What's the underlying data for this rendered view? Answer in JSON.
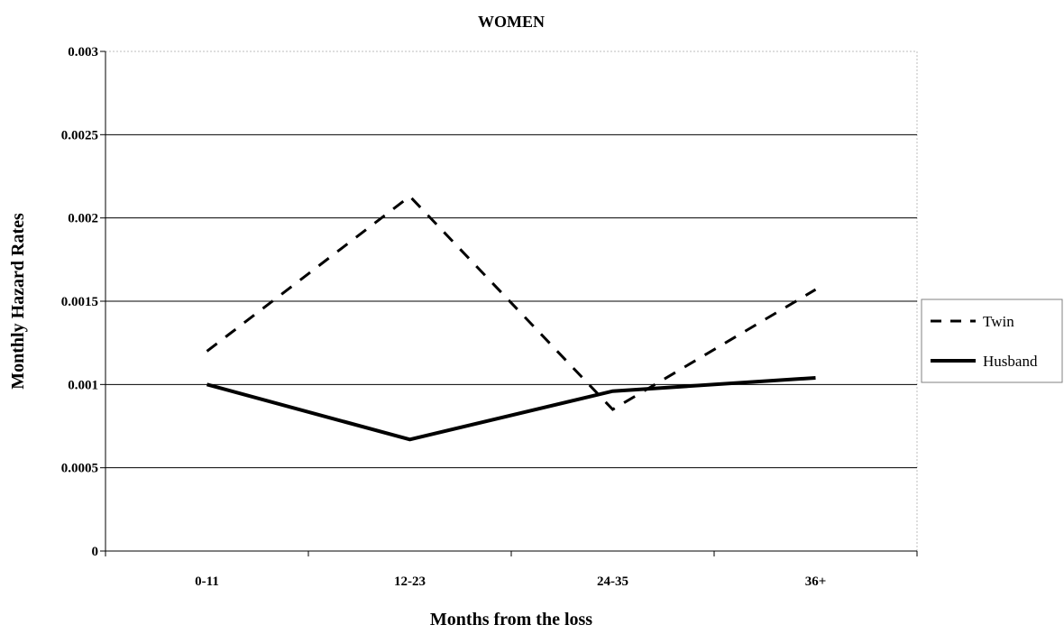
{
  "chart_data": {
    "type": "line",
    "title": "WOMEN",
    "xlabel": "Months from the loss",
    "ylabel": "Monthly Hazard Rates",
    "categories": [
      "0-11",
      "12-23",
      "24-35",
      "36+"
    ],
    "ylim": [
      0,
      0.003
    ],
    "yticks": [
      "0",
      "0.0005",
      "0.001",
      "0.0015",
      "0.002",
      "0.0025",
      "0.003"
    ],
    "grid": true,
    "legend_position": "right",
    "series": [
      {
        "name": "Twin",
        "style": "dashed",
        "color": "#000000",
        "values": [
          0.0012,
          0.00213,
          0.00085,
          0.00157
        ]
      },
      {
        "name": "Husband",
        "style": "solid",
        "color": "#000000",
        "values": [
          0.001,
          0.00067,
          0.00096,
          0.00104
        ]
      }
    ]
  }
}
